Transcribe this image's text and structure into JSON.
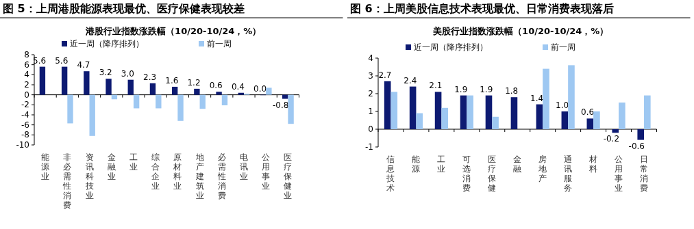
{
  "chart_data": [
    {
      "type": "bar",
      "title": "图 5：上周港股能源表现最优、医疗保健表现较差",
      "subtitle": "港股行业指数涨跌幅（10/20-10/24，%）",
      "categories": [
        "能源业",
        "非必需性消费",
        "资讯科技业",
        "金融业",
        "工业",
        "综合企业",
        "原材料业",
        "地产建筑业",
        "必需性消费",
        "电讯业",
        "公用事业",
        "医疗保健业"
      ],
      "series": [
        {
          "name": "近一周（降序排列）",
          "color": "#0d1a72",
          "values": [
            5.6,
            5.6,
            4.7,
            3.2,
            3.0,
            2.3,
            1.6,
            1.2,
            0.6,
            0.4,
            0.0,
            -0.8
          ],
          "value_labels": [
            "5.6",
            "5.6",
            "4.7",
            "3.2",
            "3.0",
            "2.3",
            "1.6",
            "1.2",
            "0.6",
            "0.4",
            "0.0",
            "-0.8"
          ]
        },
        {
          "name": "前一周",
          "color": "#9ec8f2",
          "values": [
            null,
            -5.7,
            -8.2,
            -0.9,
            -2.7,
            -2.7,
            -5.2,
            -2.8,
            -2.1,
            0.2,
            1.4,
            -5.8
          ]
        }
      ],
      "ylim": [
        -10,
        8
      ],
      "yticks": [
        -10,
        -8,
        -6,
        -4,
        -2,
        0,
        2,
        4,
        6,
        8
      ],
      "legend": "top"
    },
    {
      "type": "bar",
      "title": "图 6：上周美股信息技术表现最优、日常消费表现落后",
      "subtitle": "美股行业指数涨跌幅（10/20-10/24，%）",
      "categories": [
        "信息技术",
        "能源",
        "工业",
        "可选消费",
        "医疗保健",
        "金融",
        "房地产",
        "通讯服务",
        "材料",
        "公用事业",
        "日常消费"
      ],
      "series": [
        {
          "name": "近一周（降序排列）",
          "color": "#0d1a72",
          "values": [
            2.7,
            2.4,
            2.1,
            1.9,
            1.9,
            1.8,
            1.4,
            1.0,
            0.6,
            -0.2,
            -0.6
          ],
          "value_labels": [
            "2.7",
            "2.4",
            "2.1",
            "1.9",
            "1.9",
            "1.8",
            "1.4",
            "1.0",
            "0.6",
            "-0.2",
            "-0.6"
          ]
        },
        {
          "name": "前一周",
          "color": "#9ec8f2",
          "values": [
            2.1,
            0.9,
            1.2,
            1.9,
            0.7,
            null,
            3.4,
            3.6,
            1.0,
            1.5,
            1.9
          ]
        }
      ],
      "ylim": [
        -1,
        4
      ],
      "yticks": [
        -1,
        0,
        1,
        2,
        3,
        4
      ],
      "legend": "top"
    }
  ]
}
